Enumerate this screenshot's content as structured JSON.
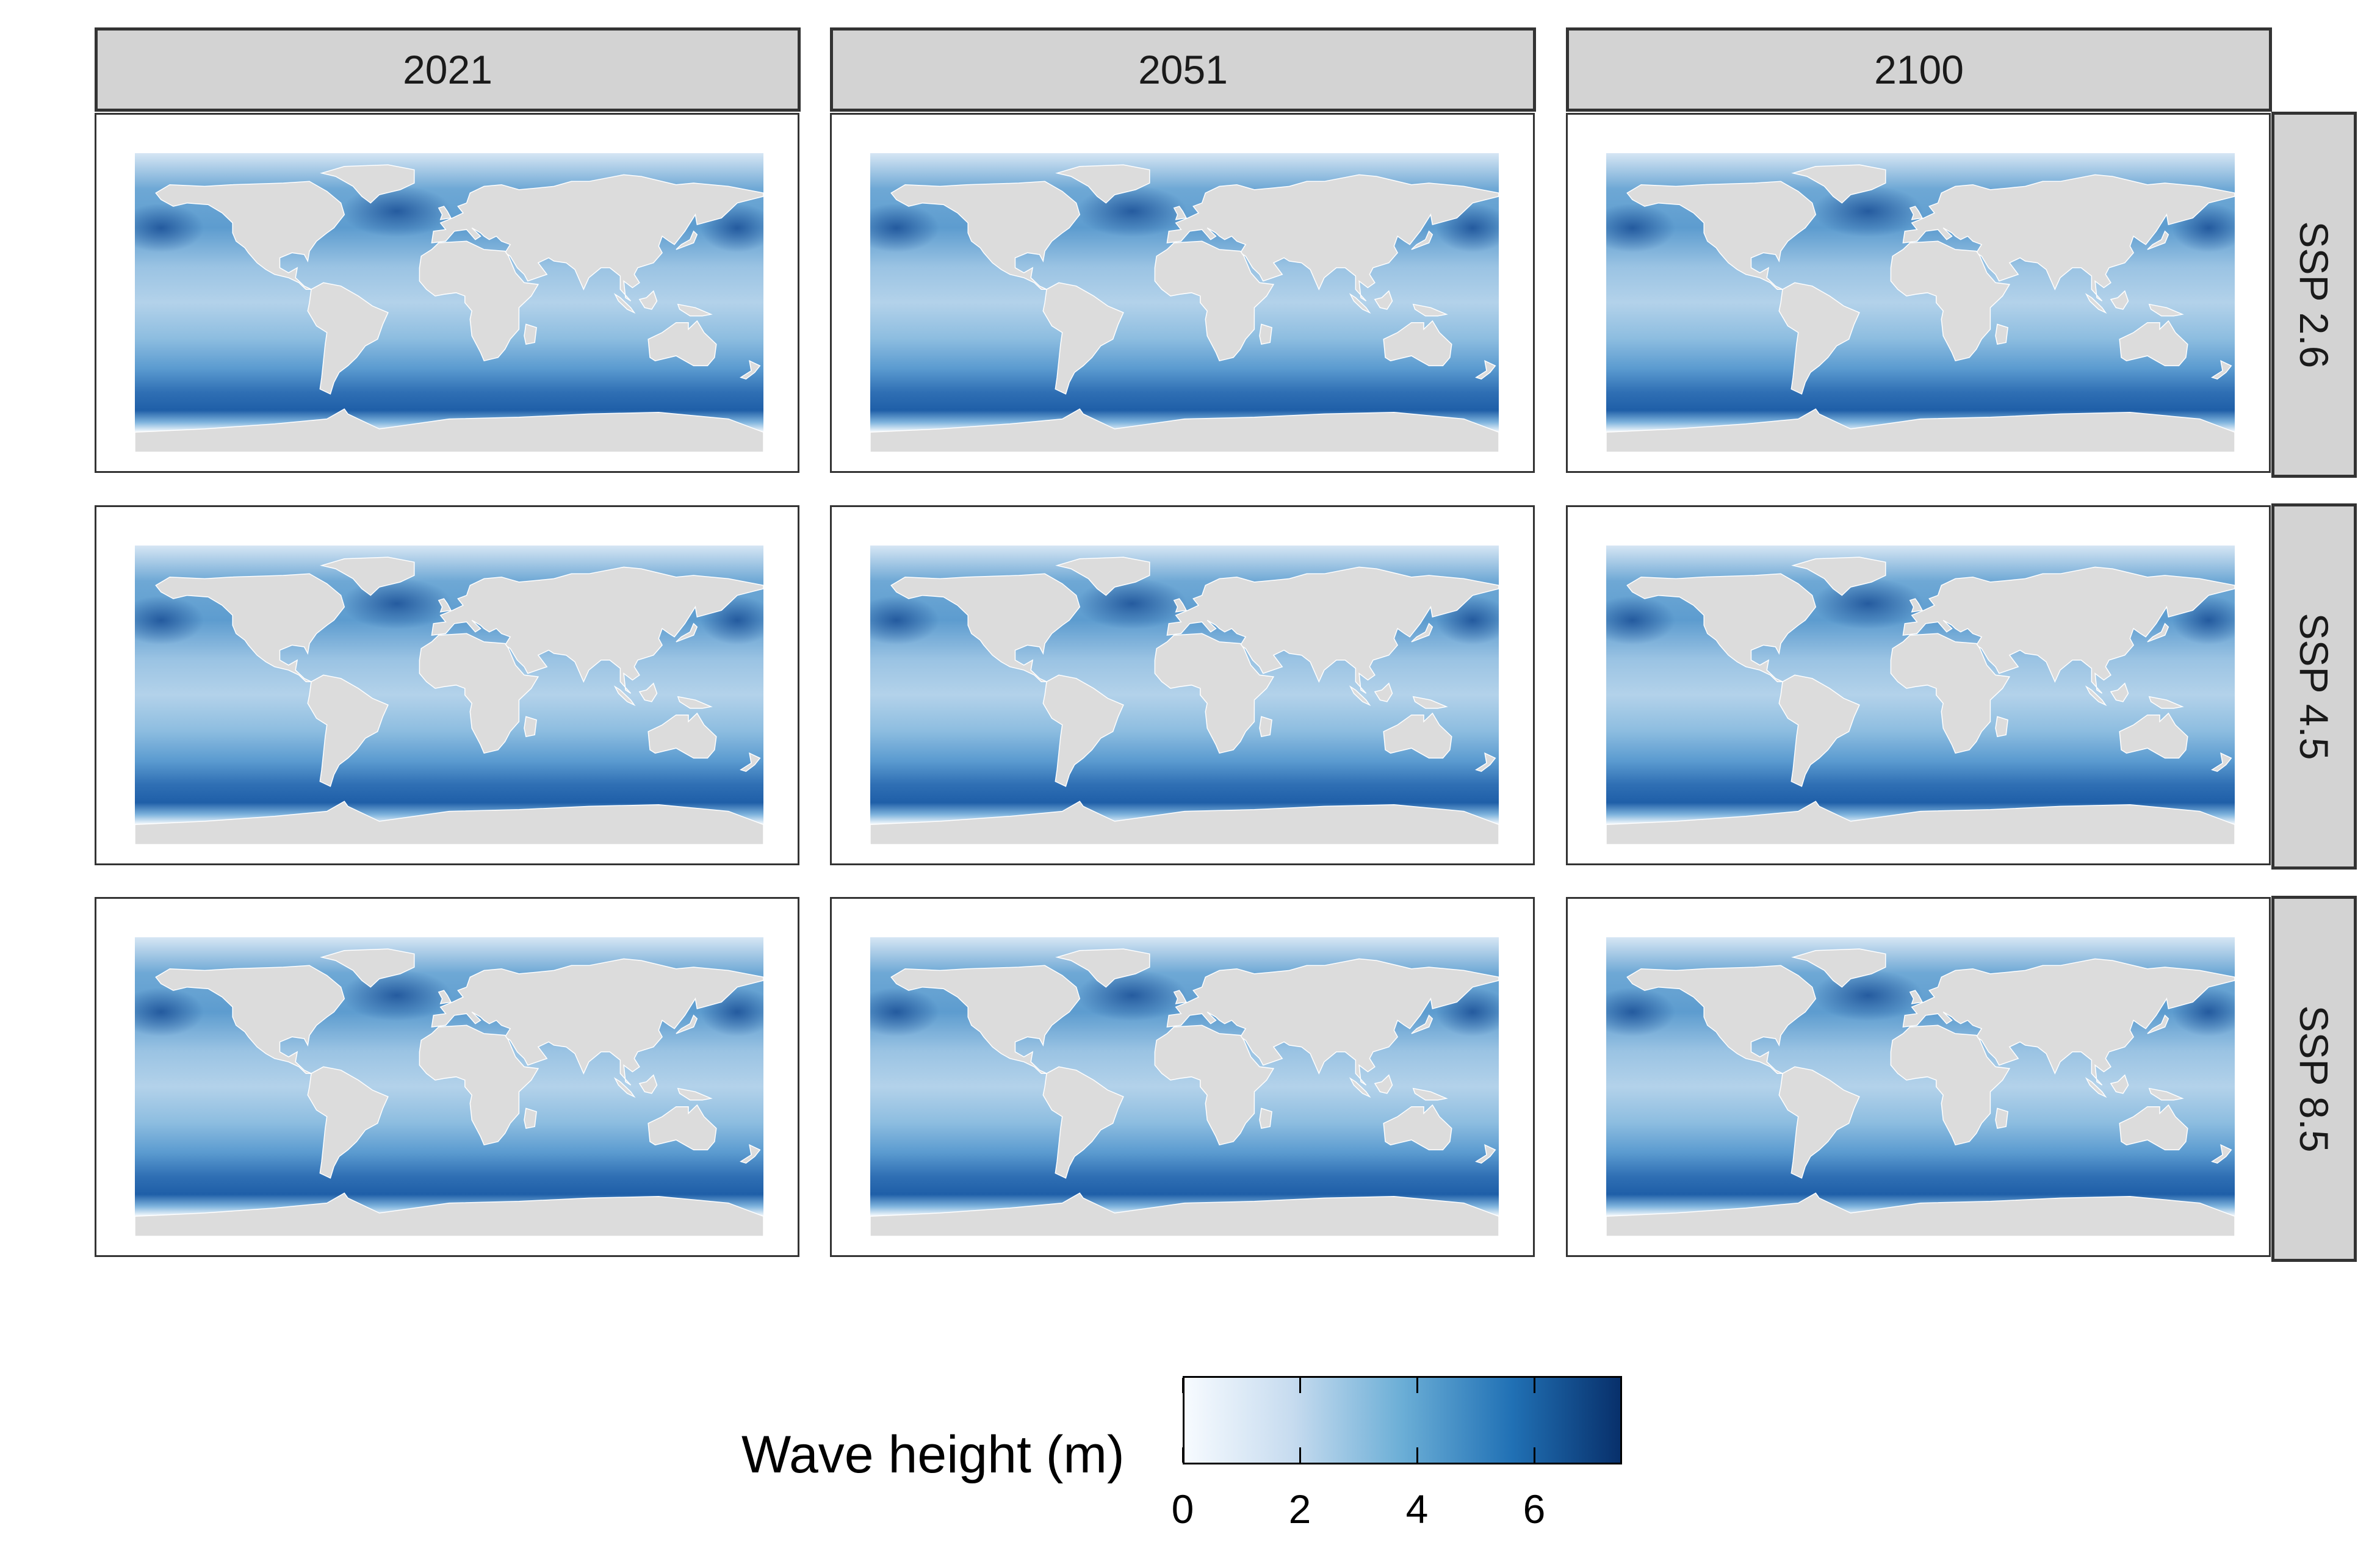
{
  "columns": [
    "2021",
    "2051",
    "2100"
  ],
  "rows": [
    "SSP 2.6",
    "SSP 4.5",
    "SSP 8.5"
  ],
  "legend": {
    "title": "Wave height (m)",
    "range": [
      0,
      7.5
    ],
    "ticks": [
      "0",
      "2",
      "4",
      "6"
    ],
    "colors": [
      "#f7fbff",
      "#c6dbef",
      "#6baed6",
      "#2171b5",
      "#08306b"
    ]
  },
  "land_color": "#dcdcdc",
  "border_color": "#ffffff"
}
